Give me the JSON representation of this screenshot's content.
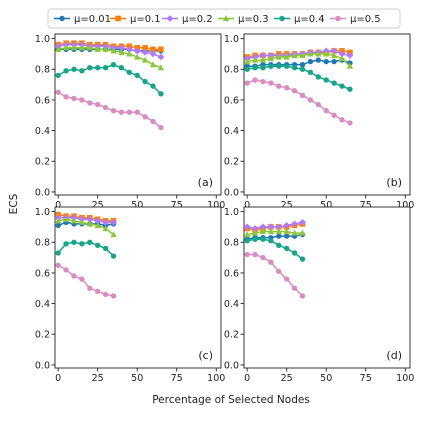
{
  "chart_data": {
    "type": "line",
    "ylabel": "ECS",
    "xlabel": "Percentage of Selected Nodes",
    "xlim": [
      -2,
      103
    ],
    "ylim": [
      -0.02,
      1.03
    ],
    "xticks": [
      0,
      25,
      50,
      75,
      100
    ],
    "yticks": [
      0.0,
      0.2,
      0.4,
      0.6,
      0.8,
      1.0
    ],
    "xtick_labels": [
      "0",
      "25",
      "50",
      "75",
      "100"
    ],
    "ytick_labels": [
      "0.0",
      "0.2",
      "0.4",
      "0.6",
      "0.8",
      "1.0"
    ],
    "legend": {
      "placement": "top-center, above panels",
      "frame": true
    },
    "series_styles": [
      {
        "name": "μ=0.01",
        "color": "#1f77b4",
        "marker": "circle"
      },
      {
        "name": "μ=0.1",
        "color": "#ff7f0e",
        "marker": "square"
      },
      {
        "name": "μ=0.2",
        "color": "#b07aff",
        "marker": "diamond"
      },
      {
        "name": "μ=0.3",
        "color": "#8cc63f",
        "marker": "triangle"
      },
      {
        "name": "μ=0.4",
        "color": "#17a589",
        "marker": "circle"
      },
      {
        "name": "μ=0.5",
        "color": "#d98cc0",
        "marker": "circle"
      }
    ],
    "panels": [
      {
        "label": "(a)",
        "x": [
          0,
          5,
          10,
          15,
          20,
          25,
          30,
          35,
          40,
          45,
          50,
          55,
          60,
          65
        ],
        "series": [
          {
            "name": "μ=0.01",
            "values": [
              0.93,
              0.93,
              0.93,
              0.93,
              0.93,
              0.93,
              0.93,
              0.93,
              0.93,
              0.93,
              0.92,
              0.92,
              0.92,
              0.92
            ]
          },
          {
            "name": "μ=0.1",
            "values": [
              0.96,
              0.97,
              0.97,
              0.97,
              0.96,
              0.96,
              0.96,
              0.95,
              0.95,
              0.95,
              0.94,
              0.94,
              0.93,
              0.93
            ]
          },
          {
            "name": "μ=0.2",
            "values": [
              0.95,
              0.96,
              0.96,
              0.96,
              0.95,
              0.95,
              0.95,
              0.94,
              0.94,
              0.93,
              0.92,
              0.91,
              0.9,
              0.88
            ]
          },
          {
            "name": "μ=0.3",
            "values": [
              0.93,
              0.94,
              0.94,
              0.94,
              0.94,
              0.93,
              0.93,
              0.92,
              0.91,
              0.9,
              0.88,
              0.86,
              0.83,
              0.81
            ]
          },
          {
            "name": "μ=0.4",
            "values": [
              0.76,
              0.79,
              0.8,
              0.79,
              0.81,
              0.81,
              0.81,
              0.83,
              0.81,
              0.78,
              0.76,
              0.72,
              0.69,
              0.64
            ]
          },
          {
            "name": "μ=0.5",
            "values": [
              0.65,
              0.62,
              0.61,
              0.6,
              0.58,
              0.57,
              0.55,
              0.53,
              0.52,
              0.52,
              0.52,
              0.49,
              0.46,
              0.42
            ]
          }
        ]
      },
      {
        "label": "(b)",
        "x": [
          0,
          5,
          10,
          15,
          20,
          25,
          30,
          35,
          40,
          45,
          50,
          55,
          60,
          65
        ],
        "series": [
          {
            "name": "μ=0.01",
            "values": [
              0.82,
              0.82,
              0.83,
              0.83,
              0.83,
              0.83,
              0.83,
              0.83,
              0.85,
              0.86,
              0.85,
              0.85,
              0.86,
              0.84
            ]
          },
          {
            "name": "μ=0.1",
            "values": [
              0.88,
              0.89,
              0.89,
              0.89,
              0.9,
              0.9,
              0.9,
              0.9,
              0.91,
              0.91,
              0.91,
              0.92,
              0.92,
              0.91
            ]
          },
          {
            "name": "μ=0.2",
            "values": [
              0.87,
              0.88,
              0.89,
              0.89,
              0.89,
              0.89,
              0.9,
              0.9,
              0.91,
              0.91,
              0.92,
              0.92,
              0.9,
              0.89
            ]
          },
          {
            "name": "μ=0.3",
            "values": [
              0.85,
              0.86,
              0.86,
              0.87,
              0.88,
              0.88,
              0.89,
              0.89,
              0.9,
              0.9,
              0.9,
              0.89,
              0.87,
              0.82
            ]
          },
          {
            "name": "μ=0.4",
            "values": [
              0.8,
              0.81,
              0.81,
              0.82,
              0.82,
              0.82,
              0.81,
              0.8,
              0.78,
              0.75,
              0.73,
              0.71,
              0.69,
              0.67
            ]
          },
          {
            "name": "μ=0.5",
            "values": [
              0.71,
              0.73,
              0.72,
              0.71,
              0.69,
              0.68,
              0.66,
              0.63,
              0.6,
              0.57,
              0.53,
              0.5,
              0.47,
              0.45
            ]
          }
        ]
      },
      {
        "label": "(c)",
        "x": [
          0,
          5,
          10,
          15,
          20,
          25,
          30,
          35
        ],
        "series": [
          {
            "name": "μ=0.01",
            "values": [
              0.91,
              0.93,
              0.92,
              0.92,
              0.92,
              0.92,
              0.91,
              0.92
            ]
          },
          {
            "name": "μ=0.1",
            "values": [
              0.98,
              0.97,
              0.97,
              0.96,
              0.96,
              0.95,
              0.94,
              0.94
            ]
          },
          {
            "name": "μ=0.2",
            "values": [
              0.96,
              0.96,
              0.96,
              0.95,
              0.95,
              0.94,
              0.93,
              0.93
            ]
          },
          {
            "name": "μ=0.3",
            "values": [
              0.94,
              0.95,
              0.94,
              0.93,
              0.92,
              0.91,
              0.89,
              0.85
            ]
          },
          {
            "name": "μ=0.4",
            "values": [
              0.73,
              0.79,
              0.8,
              0.79,
              0.8,
              0.78,
              0.76,
              0.71
            ]
          },
          {
            "name": "μ=0.5",
            "values": [
              0.65,
              0.62,
              0.58,
              0.56,
              0.5,
              0.48,
              0.46,
              0.45
            ]
          }
        ]
      },
      {
        "label": "(d)",
        "x": [
          0,
          5,
          10,
          15,
          20,
          25,
          30,
          35
        ],
        "series": [
          {
            "name": "μ=0.01",
            "values": [
              0.82,
              0.83,
              0.83,
              0.83,
              0.84,
              0.84,
              0.84,
              0.85
            ]
          },
          {
            "name": "μ=0.1",
            "values": [
              0.89,
              0.88,
              0.89,
              0.9,
              0.9,
              0.9,
              0.91,
              0.92
            ]
          },
          {
            "name": "μ=0.2",
            "values": [
              0.9,
              0.89,
              0.9,
              0.9,
              0.9,
              0.91,
              0.92,
              0.93
            ]
          },
          {
            "name": "μ=0.3",
            "values": [
              0.85,
              0.86,
              0.87,
              0.87,
              0.87,
              0.87,
              0.86,
              0.86
            ]
          },
          {
            "name": "μ=0.4",
            "values": [
              0.81,
              0.82,
              0.82,
              0.81,
              0.78,
              0.76,
              0.73,
              0.69
            ]
          },
          {
            "name": "μ=0.5",
            "values": [
              0.72,
              0.72,
              0.7,
              0.67,
              0.61,
              0.56,
              0.5,
              0.45
            ]
          }
        ]
      }
    ]
  }
}
